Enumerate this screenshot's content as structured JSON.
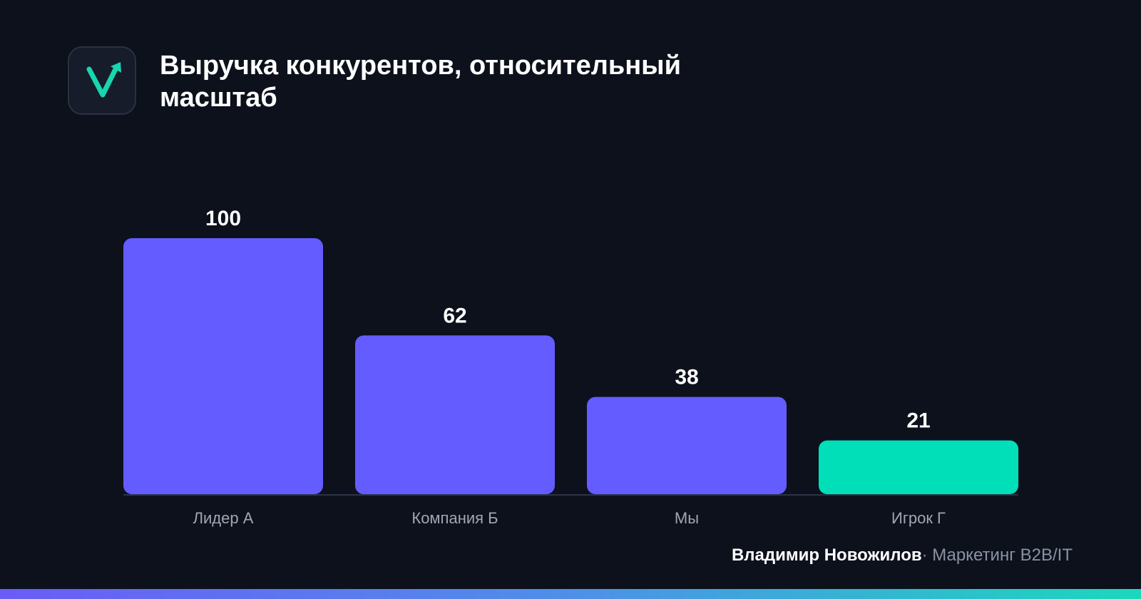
{
  "header": {
    "title": "Выручка конкурентов, относительный масштаб",
    "logo": "checkmark-arrow-logo"
  },
  "chart_data": {
    "type": "bar",
    "categories": [
      "Лидер А",
      "Компания Б",
      "Мы",
      "Игрок Г"
    ],
    "values": [
      100,
      62,
      38,
      21
    ],
    "value_labels": [
      "100",
      "62",
      "38",
      "21"
    ],
    "bar_colors": [
      "#645cff",
      "#645cff",
      "#645cff",
      "#00dfb8"
    ],
    "title": "Выручка конкурентов, относительный масштаб",
    "xlabel": "",
    "ylabel": "",
    "ylim": [
      0,
      100
    ],
    "grid": false,
    "legend": "none"
  },
  "footer": {
    "author": "Владимир Новожилов",
    "separator": "·",
    "tagline": "Маркетинг B2B/IT"
  },
  "colors": {
    "background": "#0c111c",
    "bar_primary": "#645cff",
    "bar_accent": "#00dfb8",
    "axis": "#2e3447",
    "category_label": "#a0a6b3",
    "muted_text": "#8a92a3",
    "logo_mark": "#17d6b0"
  }
}
